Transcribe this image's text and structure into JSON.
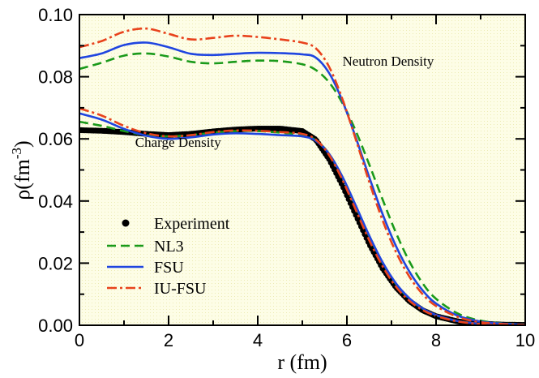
{
  "chart_data": {
    "type": "line",
    "title": "",
    "xlabel": "r (fm)",
    "ylabel": "ρ(fm",
    "ylabel_exponent": "-3",
    "ylabel_close": ")",
    "xlim": [
      0,
      10
    ],
    "ylim": [
      0,
      0.1
    ],
    "xticks": [
      0,
      2,
      4,
      6,
      8,
      10
    ],
    "xtick_labels": [
      "0",
      "2",
      "4",
      "6",
      "8",
      "10"
    ],
    "yticks": [
      0,
      0.02,
      0.04,
      0.06,
      0.08,
      0.1
    ],
    "ytick_labels": [
      "0.00",
      "0.02",
      "0.04",
      "0.06",
      "0.08",
      "0.10"
    ],
    "background_color": "#fdfde6",
    "annotations": [
      {
        "id": "neutron",
        "text": "Neutron Density",
        "x": 5.9,
        "y": 0.0835
      },
      {
        "id": "charge",
        "text": "Charge Density",
        "x": 1.25,
        "y": 0.0575
      }
    ],
    "legend": {
      "position": "lower-left",
      "entries": [
        {
          "label": "Experiment",
          "style": "dots",
          "color": "#000000"
        },
        {
          "label": "NL3",
          "style": "dashed",
          "color": "#1a9a1a"
        },
        {
          "label": "FSU",
          "style": "solid",
          "color": "#1f45e0"
        },
        {
          "label": "IU-FSU",
          "style": "dashdot",
          "color": "#e8421c"
        }
      ]
    },
    "series": [
      {
        "name": "Experiment",
        "group": "charge",
        "style": "dots",
        "color": "#000000",
        "x": [
          0,
          0.5,
          1,
          1.5,
          2,
          2.5,
          3,
          3.5,
          4,
          4.5,
          5,
          5.3,
          5.6,
          5.9,
          6.2,
          6.5,
          6.8,
          7.1,
          7.4,
          7.7,
          8,
          8.5,
          9,
          9.5,
          10
        ],
        "y": [
          0.0628,
          0.0626,
          0.0622,
          0.0616,
          0.0612,
          0.0616,
          0.0624,
          0.063,
          0.0633,
          0.0633,
          0.0625,
          0.0598,
          0.0535,
          0.045,
          0.0355,
          0.0262,
          0.0183,
          0.0122,
          0.0078,
          0.0048,
          0.0029,
          0.0012,
          0.0005,
          0.0002,
          0.0001
        ]
      },
      {
        "name": "NL3",
        "group": "charge",
        "style": "dashed",
        "color": "#1a9a1a",
        "x": [
          0,
          0.5,
          1,
          1.5,
          2,
          2.5,
          3,
          3.5,
          4,
          4.5,
          5,
          5.3,
          5.6,
          5.9,
          6.2,
          6.5,
          6.8,
          7.1,
          7.4,
          7.7,
          8,
          8.5,
          9,
          9.5,
          10
        ],
        "y": [
          0.0655,
          0.0642,
          0.0625,
          0.0612,
          0.0608,
          0.0612,
          0.062,
          0.0625,
          0.0625,
          0.062,
          0.0612,
          0.0596,
          0.0552,
          0.0477,
          0.0383,
          0.0287,
          0.0201,
          0.0133,
          0.0085,
          0.0053,
          0.0032,
          0.0013,
          0.0005,
          0.0002,
          0.0001
        ]
      },
      {
        "name": "FSU",
        "group": "charge",
        "style": "solid",
        "color": "#1f45e0",
        "x": [
          0,
          0.5,
          1,
          1.5,
          2,
          2.5,
          3,
          3.5,
          4,
          4.5,
          5,
          5.3,
          5.6,
          5.9,
          6.2,
          6.5,
          6.8,
          7.1,
          7.4,
          7.7,
          8,
          8.5,
          9,
          9.5,
          10
        ],
        "y": [
          0.0682,
          0.0662,
          0.0632,
          0.061,
          0.06,
          0.0605,
          0.0614,
          0.0618,
          0.0616,
          0.0612,
          0.0608,
          0.0594,
          0.0552,
          0.0478,
          0.0385,
          0.0289,
          0.0203,
          0.0135,
          0.0087,
          0.0054,
          0.0033,
          0.0013,
          0.0005,
          0.0002,
          0.0001
        ]
      },
      {
        "name": "IU-FSU",
        "group": "charge",
        "style": "dashdot",
        "color": "#e8421c",
        "x": [
          0,
          0.5,
          1,
          1.5,
          2,
          2.5,
          3,
          3.5,
          4,
          4.5,
          5,
          5.3,
          5.6,
          5.9,
          6.2,
          6.5,
          6.8,
          7.1,
          7.4,
          7.7,
          8,
          8.5,
          9,
          9.5,
          10
        ],
        "y": [
          0.0698,
          0.0675,
          0.0642,
          0.0618,
          0.0608,
          0.0612,
          0.0622,
          0.0627,
          0.0626,
          0.0622,
          0.0616,
          0.0598,
          0.0548,
          0.0468,
          0.0371,
          0.0274,
          0.019,
          0.0124,
          0.0079,
          0.0049,
          0.003,
          0.0012,
          0.0004,
          0.0002,
          0.0001
        ]
      },
      {
        "name": "NL3",
        "group": "neutron",
        "style": "dashed",
        "color": "#1a9a1a",
        "x": [
          0,
          0.5,
          1,
          1.5,
          2,
          2.5,
          3,
          3.5,
          4,
          4.5,
          5,
          5.3,
          5.6,
          5.9,
          6.2,
          6.5,
          6.8,
          7.1,
          7.4,
          7.7,
          8,
          8.5,
          9,
          9.5,
          10
        ],
        "y": [
          0.0825,
          0.0845,
          0.0868,
          0.0875,
          0.0865,
          0.0848,
          0.0843,
          0.0848,
          0.0852,
          0.085,
          0.084,
          0.0822,
          0.0782,
          0.0715,
          0.0625,
          0.0518,
          0.0405,
          0.0298,
          0.0206,
          0.0135,
          0.0085,
          0.0037,
          0.0015,
          0.0006,
          0.0002
        ]
      },
      {
        "name": "FSU",
        "group": "neutron",
        "style": "solid",
        "color": "#1f45e0",
        "x": [
          0,
          0.5,
          1,
          1.5,
          2,
          2.5,
          3,
          3.5,
          4,
          4.5,
          5,
          5.3,
          5.6,
          5.9,
          6.2,
          6.5,
          6.8,
          7.1,
          7.4,
          7.7,
          8,
          8.5,
          9,
          9.5,
          10
        ],
        "y": [
          0.086,
          0.0875,
          0.0902,
          0.091,
          0.0895,
          0.0874,
          0.087,
          0.0874,
          0.0877,
          0.0876,
          0.0872,
          0.0862,
          0.0812,
          0.0722,
          0.0604,
          0.0477,
          0.0358,
          0.0255,
          0.0173,
          0.0112,
          0.007,
          0.003,
          0.0012,
          0.0005,
          0.0002
        ]
      },
      {
        "name": "IU-FSU",
        "group": "neutron",
        "style": "dashdot",
        "color": "#e8421c",
        "x": [
          0,
          0.5,
          1,
          1.5,
          2,
          2.5,
          3,
          3.5,
          4,
          4.5,
          5,
          5.3,
          5.6,
          5.9,
          6.2,
          6.5,
          6.8,
          7.1,
          7.4,
          7.7,
          8,
          8.5,
          9,
          9.5,
          10
        ],
        "y": [
          0.0895,
          0.0915,
          0.0945,
          0.0955,
          0.0938,
          0.092,
          0.0925,
          0.0932,
          0.0928,
          0.092,
          0.091,
          0.0892,
          0.0832,
          0.0728,
          0.0598,
          0.0462,
          0.0338,
          0.0236,
          0.0157,
          0.01,
          0.0062,
          0.0026,
          0.001,
          0.0004,
          0.0001
        ]
      }
    ]
  }
}
